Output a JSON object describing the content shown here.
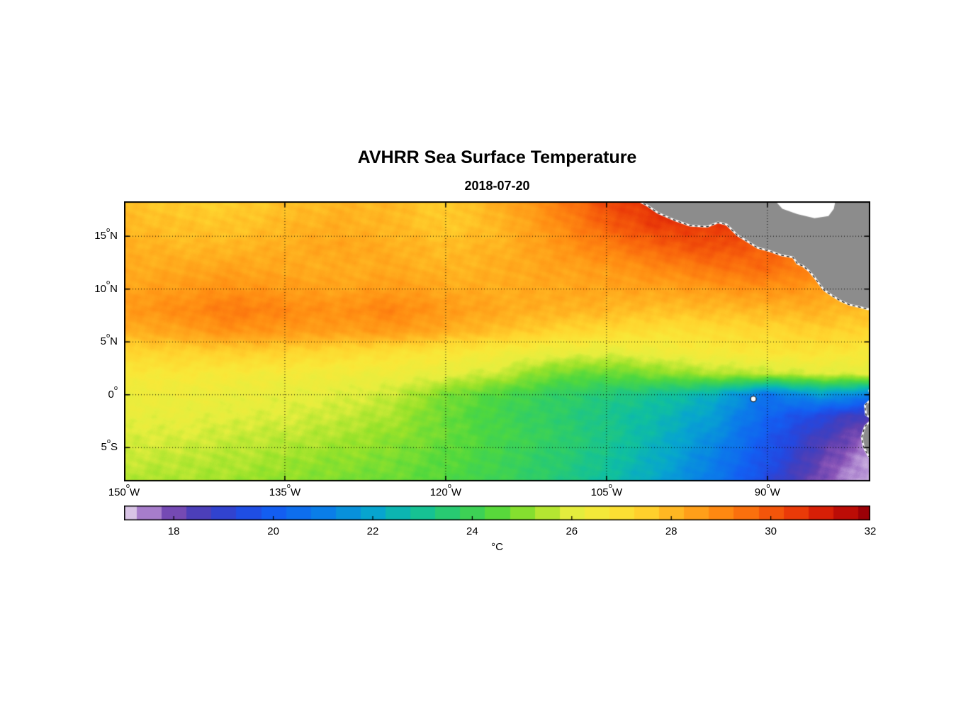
{
  "chart_data": {
    "type": "heatmap",
    "title": "AVHRR Sea Surface Temperature",
    "subtitle": "2018-07-20",
    "degree_glyph": "o",
    "x_axis": {
      "ticks": [
        {
          "num": "150",
          "dir": "W",
          "lon": -150
        },
        {
          "num": "135",
          "dir": "W",
          "lon": -135
        },
        {
          "num": "120",
          "dir": "W",
          "lon": -120
        },
        {
          "num": "105",
          "dir": "W",
          "lon": -105
        },
        {
          "num": "90",
          "dir": "W",
          "lon": -90
        }
      ]
    },
    "y_axis": {
      "ticks": [
        {
          "num": "15",
          "dir": "N",
          "lat": 15
        },
        {
          "num": "10",
          "dir": "N",
          "lat": 10
        },
        {
          "num": "5",
          "dir": "N",
          "lat": 5
        },
        {
          "num": "0",
          "dir": "",
          "lat": 0
        },
        {
          "num": "5",
          "dir": "S",
          "lat": -5
        }
      ]
    },
    "lon_range": [
      -150,
      -80.4
    ],
    "lat_range": [
      -8.2,
      18.3
    ],
    "grid": {
      "lons": [
        -150,
        -145,
        -140,
        -135,
        -130,
        -125,
        -120,
        -115,
        -110,
        -105,
        -100,
        -95,
        -90,
        -85,
        -80
      ],
      "lats": [
        18,
        16,
        14,
        12,
        10,
        8,
        6,
        4,
        2,
        0,
        -2,
        -4,
        -6,
        -8
      ],
      "sst_c": [
        [
          27.8,
          27.6,
          27.5,
          27.8,
          28.0,
          28.0,
          27.5,
          28.2,
          29.0,
          30.2,
          30.8,
          30.8,
          30.5,
          30.0,
          29.5
        ],
        [
          28.0,
          27.8,
          27.7,
          28.0,
          28.2,
          28.0,
          27.6,
          28.0,
          28.8,
          29.8,
          30.5,
          30.5,
          30.2,
          29.6,
          29.2
        ],
        [
          28.2,
          28.0,
          28.0,
          28.2,
          28.4,
          28.2,
          27.9,
          28.1,
          28.6,
          29.2,
          29.8,
          30.2,
          29.8,
          29.2,
          28.8
        ],
        [
          28.2,
          28.3,
          28.4,
          28.3,
          28.2,
          28.3,
          28.0,
          28.2,
          28.4,
          28.6,
          29.0,
          29.4,
          29.6,
          29.0,
          28.6
        ],
        [
          28.4,
          28.6,
          28.8,
          28.6,
          28.4,
          28.6,
          28.3,
          28.2,
          28.3,
          28.4,
          28.4,
          28.6,
          28.8,
          28.6,
          28.2
        ],
        [
          28.6,
          28.9,
          29.3,
          29.0,
          28.8,
          29.1,
          28.6,
          28.3,
          28.1,
          28.0,
          27.8,
          27.9,
          28.0,
          28.1,
          27.8
        ],
        [
          28.2,
          28.4,
          28.8,
          28.6,
          28.5,
          28.6,
          28.2,
          27.8,
          27.4,
          27.2,
          27.0,
          27.1,
          27.3,
          27.5,
          27.3
        ],
        [
          27.3,
          27.4,
          27.5,
          27.4,
          27.2,
          27.0,
          26.8,
          26.5,
          26.2,
          26.0,
          26.3,
          26.6,
          26.8,
          26.9,
          26.6
        ],
        [
          26.7,
          26.7,
          26.6,
          26.5,
          26.4,
          26.3,
          26.1,
          25.7,
          24.8,
          24.6,
          25.0,
          25.4,
          25.6,
          25.9,
          26.0
        ],
        [
          26.3,
          26.3,
          26.2,
          26.1,
          26.0,
          25.7,
          24.9,
          24.3,
          23.8,
          23.4,
          23.0,
          22.3,
          20.6,
          21.8,
          21.0
        ],
        [
          26.1,
          26.1,
          26.0,
          25.9,
          25.7,
          25.4,
          24.7,
          24.1,
          23.7,
          23.1,
          22.6,
          21.8,
          20.2,
          19.2,
          18.4
        ],
        [
          25.9,
          25.9,
          25.7,
          25.6,
          25.4,
          25.1,
          24.7,
          24.2,
          23.8,
          23.2,
          22.4,
          21.4,
          19.8,
          18.6,
          17.6
        ],
        [
          25.7,
          25.6,
          25.5,
          25.3,
          25.1,
          24.9,
          24.5,
          24.1,
          23.6,
          23.0,
          22.2,
          21.0,
          19.6,
          18.2,
          17.2
        ],
        [
          25.5,
          25.4,
          25.3,
          25.1,
          24.9,
          24.7,
          24.4,
          24.0,
          23.5,
          22.8,
          22.0,
          20.8,
          19.3,
          17.9,
          17.0
        ]
      ]
    },
    "colormap": {
      "domain": [
        17,
        32
      ],
      "stops": [
        [
          17.0,
          "#d9c4e6"
        ],
        [
          17.4,
          "#b18bd2"
        ],
        [
          17.8,
          "#8a55b8"
        ],
        [
          18.2,
          "#6040b0"
        ],
        [
          18.7,
          "#3f3fc0"
        ],
        [
          19.3,
          "#2448e0"
        ],
        [
          20.0,
          "#135ff2"
        ],
        [
          21.0,
          "#0a7fe8"
        ],
        [
          22.0,
          "#07a5cf"
        ],
        [
          22.8,
          "#10bfa0"
        ],
        [
          23.6,
          "#2ccc6c"
        ],
        [
          24.4,
          "#50d83e"
        ],
        [
          25.2,
          "#98e22a"
        ],
        [
          26.0,
          "#e6ee3e"
        ],
        [
          26.7,
          "#f9e838"
        ],
        [
          27.4,
          "#ffd52e"
        ],
        [
          28.1,
          "#ffb220"
        ],
        [
          28.9,
          "#ff8d12"
        ],
        [
          29.7,
          "#f9660c"
        ],
        [
          30.5,
          "#ea3a08"
        ],
        [
          31.2,
          "#cf1406"
        ],
        [
          32.0,
          "#9b0007"
        ]
      ]
    },
    "colorbar": {
      "unit": "°C",
      "ticks": [
        18,
        20,
        22,
        24,
        26,
        28,
        30,
        32
      ],
      "min": 17,
      "max": 32
    },
    "land_color": "#8c8c8c",
    "land": [
      {
        "name": "mexico-central-america",
        "poly": [
          [
            -102.5,
            18.6
          ],
          [
            -101.2,
            17.9
          ],
          [
            -100.2,
            17.2
          ],
          [
            -98.6,
            16.5
          ],
          [
            -97.2,
            16.0
          ],
          [
            -95.6,
            15.9
          ],
          [
            -94.6,
            16.3
          ],
          [
            -93.8,
            16.1
          ],
          [
            -92.8,
            15.1
          ],
          [
            -92.0,
            14.6
          ],
          [
            -90.9,
            13.9
          ],
          [
            -89.8,
            13.6
          ],
          [
            -88.7,
            13.2
          ],
          [
            -87.6,
            13.0
          ],
          [
            -87.2,
            12.4
          ],
          [
            -86.7,
            12.2
          ],
          [
            -86.1,
            11.7
          ],
          [
            -85.6,
            11.1
          ],
          [
            -85.1,
            10.4
          ],
          [
            -84.7,
            9.9
          ],
          [
            -84.0,
            9.4
          ],
          [
            -83.2,
            8.9
          ],
          [
            -82.3,
            8.5
          ],
          [
            -81.4,
            8.3
          ],
          [
            -80.6,
            8.1
          ],
          [
            -80.0,
            8.3
          ],
          [
            -79.4,
            8.9
          ],
          [
            -79.2,
            8.5
          ],
          [
            -78.8,
            8.2
          ],
          [
            -78.8,
            18.6
          ]
        ]
      },
      {
        "name": "south-america",
        "poly": [
          [
            -79.3,
            1.7
          ],
          [
            -80.1,
            1.2
          ],
          [
            -80.5,
            0.4
          ],
          [
            -80.3,
            -0.4
          ],
          [
            -80.9,
            -1.0
          ],
          [
            -80.8,
            -1.9
          ],
          [
            -80.2,
            -2.3
          ],
          [
            -80.9,
            -3.0
          ],
          [
            -81.2,
            -4.0
          ],
          [
            -81.0,
            -5.0
          ],
          [
            -80.5,
            -5.9
          ],
          [
            -79.9,
            -6.6
          ],
          [
            -79.3,
            -7.3
          ]
        ]
      }
    ],
    "water_mask": [
      {
        "name": "caribbean-white",
        "poly": [
          [
            -89.5,
            18.6
          ],
          [
            -88.6,
            17.6
          ],
          [
            -87.2,
            17.1
          ],
          [
            -85.6,
            16.7
          ],
          [
            -84.3,
            16.9
          ],
          [
            -83.8,
            17.6
          ],
          [
            -83.6,
            18.6
          ]
        ]
      }
    ],
    "islands": [
      {
        "name": "galapagos",
        "lon": -91.3,
        "lat": -0.4
      }
    ],
    "grid_lines": {
      "lons": [
        -135,
        -120,
        -105,
        -90
      ],
      "lats": [
        15,
        10,
        5,
        0,
        -5
      ],
      "style": "dotted"
    }
  }
}
